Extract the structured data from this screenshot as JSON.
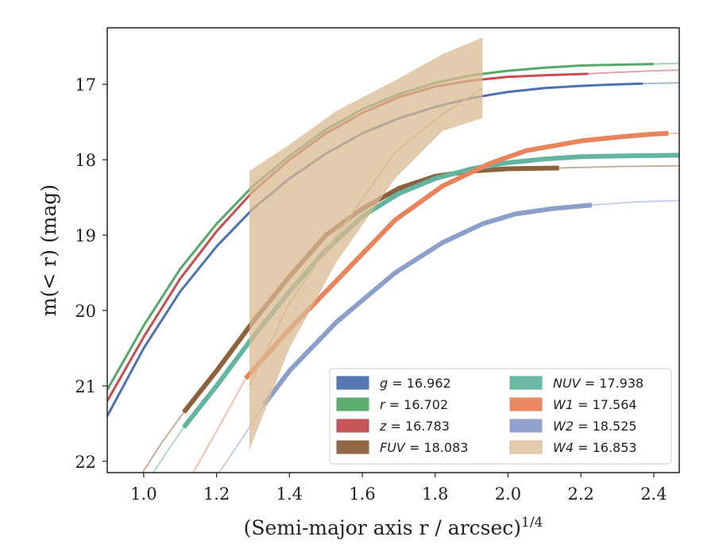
{
  "chart_data": {
    "type": "line",
    "xlabel": "(Semi-major axis r / arcsec)",
    "xlabel_sup": "1/4",
    "ylabel": "m(< r) (mag)",
    "xlim": [
      0.9,
      2.47
    ],
    "ylim": [
      22.15,
      16.25
    ],
    "y_inverted": true,
    "grid": false,
    "legend_position": "lower-right",
    "xticks": [
      1.0,
      1.2,
      1.4,
      1.6,
      1.8,
      2.0,
      2.2,
      2.4
    ],
    "xtick_labels": [
      "1.0",
      "1.2",
      "1.4",
      "1.6",
      "1.8",
      "2.0",
      "2.2",
      "2.4"
    ],
    "yticks": [
      17,
      18,
      19,
      20,
      21,
      22
    ],
    "ytick_labels": [
      "17",
      "18",
      "19",
      "20",
      "21",
      "22"
    ],
    "series": [
      {
        "name": "g = 16.962",
        "label_var": "g",
        "label_val": "16.962",
        "color": "#4c72b0",
        "x": [
          0.9,
          1.0,
          1.1,
          1.2,
          1.3,
          1.4,
          1.5,
          1.6,
          1.7,
          1.8,
          1.9,
          2.0,
          2.1,
          2.2,
          2.3,
          2.37
        ],
        "y": [
          21.4,
          20.5,
          19.75,
          19.15,
          18.65,
          18.25,
          17.92,
          17.65,
          17.45,
          17.3,
          17.18,
          17.1,
          17.05,
          17.02,
          17.0,
          16.99
        ],
        "thick_until": 2.37,
        "ext_x": [
          2.37,
          2.47
        ],
        "ext_y": [
          16.99,
          16.98
        ]
      },
      {
        "name": "r = 16.702",
        "label_var": "r",
        "label_val": "16.702",
        "color": "#55a868",
        "x": [
          0.9,
          1.0,
          1.1,
          1.2,
          1.3,
          1.4,
          1.5,
          1.6,
          1.7,
          1.8,
          1.9,
          2.0,
          2.1,
          2.2,
          2.3,
          2.4
        ],
        "y": [
          21.05,
          20.2,
          19.45,
          18.85,
          18.35,
          17.95,
          17.6,
          17.33,
          17.13,
          16.98,
          16.88,
          16.82,
          16.78,
          16.75,
          16.74,
          16.73
        ],
        "thick_until": 2.4,
        "ext_x": [
          2.4,
          2.47
        ],
        "ext_y": [
          16.73,
          16.72
        ]
      },
      {
        "name": "z = 16.783",
        "label_var": "z",
        "label_val": "16.783",
        "color": "#c44e52",
        "x": [
          0.9,
          1.0,
          1.1,
          1.2,
          1.3,
          1.4,
          1.5,
          1.6,
          1.7,
          1.8,
          1.9,
          2.0,
          2.1,
          2.22
        ],
        "y": [
          21.2,
          20.35,
          19.58,
          18.95,
          18.42,
          18.0,
          17.65,
          17.38,
          17.17,
          17.03,
          16.95,
          16.9,
          16.88,
          16.86
        ],
        "thick_until": 2.22,
        "ext_x": [
          2.22,
          2.3,
          2.4,
          2.47
        ],
        "ext_y": [
          16.86,
          16.84,
          16.82,
          16.81
        ]
      },
      {
        "name": "FUV = 18.083",
        "label_var": "FUV",
        "label_val": "18.083",
        "color": "#8c613c",
        "x": [
          1.11,
          1.2,
          1.3,
          1.4,
          1.5,
          1.6,
          1.7,
          1.8,
          1.9,
          2.0,
          2.14
        ],
        "y": [
          21.35,
          20.8,
          20.15,
          19.55,
          19.0,
          18.65,
          18.38,
          18.22,
          18.15,
          18.12,
          18.11
        ],
        "thick_until": 2.14,
        "ext_x": [
          0.99,
          1.05,
          1.11
        ],
        "ext_y": [
          22.2,
          21.75,
          21.35
        ],
        "ext2_x": [
          2.14,
          2.3,
          2.47
        ],
        "ext2_y": [
          18.11,
          18.09,
          18.08
        ]
      },
      {
        "name": "NUV = 17.938",
        "label_var": "NUV",
        "label_val": "17.938",
        "color": "#64b5a0",
        "x": [
          1.11,
          1.2,
          1.3,
          1.4,
          1.5,
          1.6,
          1.7,
          1.8,
          1.9,
          2.0,
          2.1,
          2.2,
          2.3,
          2.47
        ],
        "y": [
          21.55,
          21.0,
          20.35,
          19.75,
          19.2,
          18.75,
          18.45,
          18.25,
          18.12,
          18.04,
          17.99,
          17.96,
          17.95,
          17.94
        ],
        "thick_until": 2.47,
        "ext_x": [
          1.02,
          1.06,
          1.11
        ],
        "ext_y": [
          22.2,
          21.9,
          21.55
        ]
      },
      {
        "name": "W1 = 17.564",
        "label_var": "W1",
        "label_val": "17.564",
        "color": "#e8835c",
        "x": [
          1.28,
          1.4,
          1.53,
          1.69,
          1.82,
          1.95,
          2.05,
          2.2,
          2.3,
          2.4,
          2.44
        ],
        "y": [
          20.9,
          20.25,
          19.6,
          18.8,
          18.35,
          18.05,
          17.88,
          17.75,
          17.7,
          17.66,
          17.65
        ],
        "thick_until": 2.44,
        "ext_x": [
          1.13,
          1.2,
          1.28
        ],
        "ext_y": [
          22.2,
          21.6,
          20.9
        ],
        "ext2_x": [
          2.44,
          2.47
        ],
        "ext2_y": [
          17.65,
          17.65
        ]
      },
      {
        "name": "W2 = 18.525",
        "label_var": "W2",
        "label_val": "18.525",
        "color": "#8c9fcb",
        "x": [
          1.33,
          1.4,
          1.53,
          1.69,
          1.82,
          1.93,
          2.02,
          2.12,
          2.23
        ],
        "y": [
          21.25,
          20.8,
          20.15,
          19.5,
          19.1,
          18.85,
          18.72,
          18.65,
          18.6
        ],
        "thick_until": 2.23,
        "ext_x": [
          1.2,
          1.27,
          1.33
        ],
        "ext_y": [
          22.2,
          21.7,
          21.25
        ],
        "ext2_x": [
          2.23,
          2.35,
          2.47
        ],
        "ext2_y": [
          18.6,
          18.56,
          18.54
        ]
      },
      {
        "name": "W4 = 16.853",
        "label_var": "W4",
        "label_val": "16.853",
        "color": "#d9b991",
        "band_x": [
          1.29,
          1.4,
          1.53,
          1.69,
          1.82,
          1.93
        ],
        "band_upper": [
          18.15,
          17.8,
          17.35,
          16.95,
          16.6,
          16.38
        ],
        "band_lower": [
          21.85,
          20.5,
          19.35,
          18.25,
          17.62,
          17.45
        ],
        "line_x": [
          1.29,
          1.4,
          1.53,
          1.69,
          1.82,
          1.93
        ],
        "line_y": [
          21.0,
          19.9,
          19.0,
          17.9,
          17.4,
          17.05
        ]
      }
    ]
  }
}
